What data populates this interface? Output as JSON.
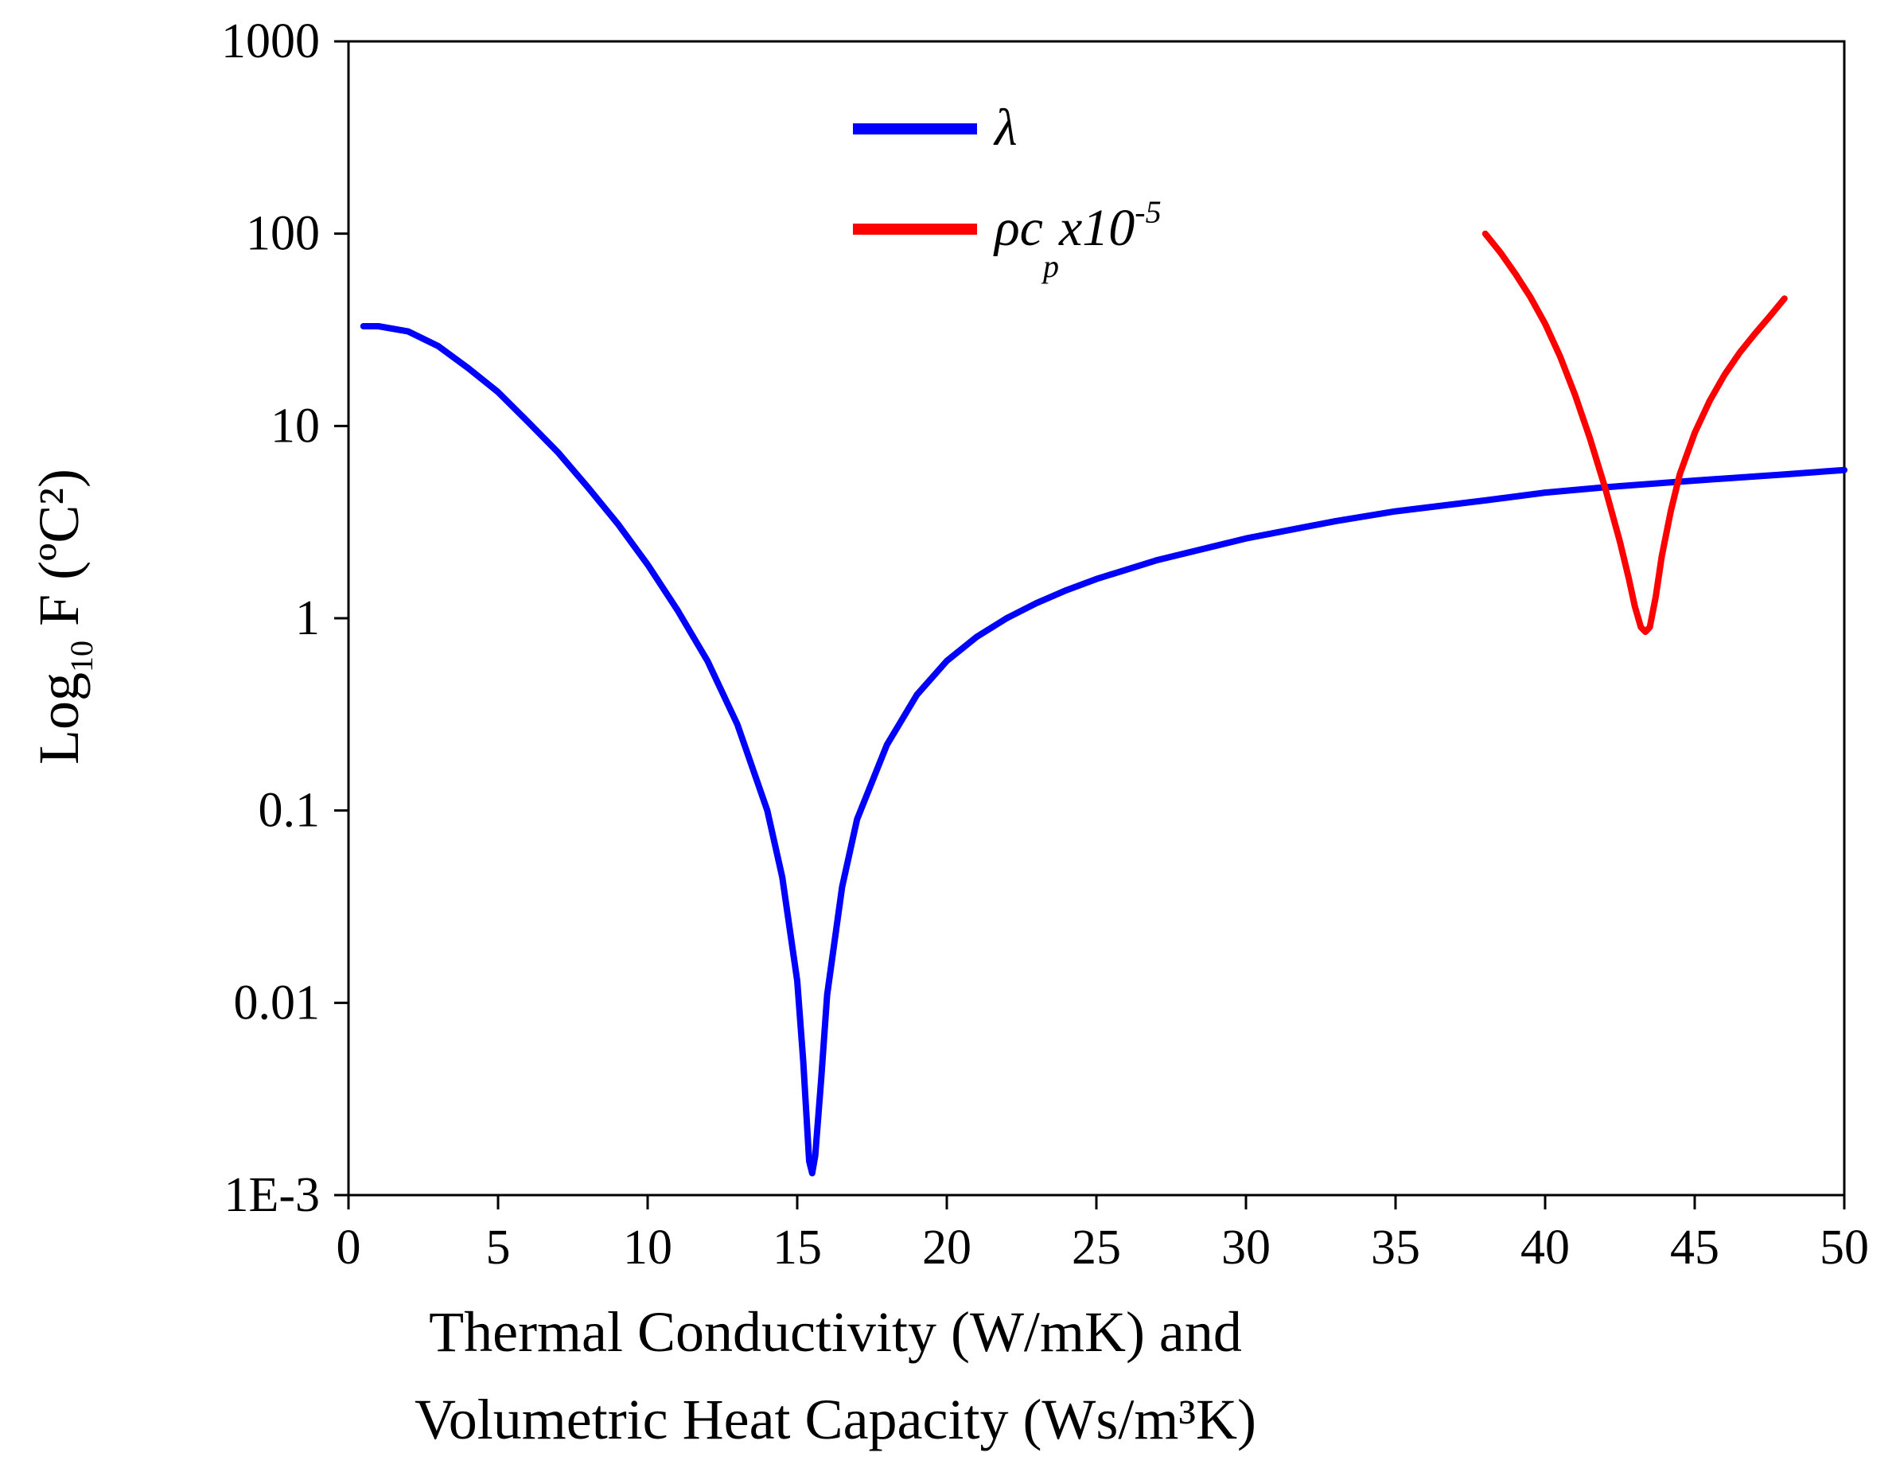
{
  "chart_data": {
    "type": "line",
    "title": "",
    "xlabel_line1": "Thermal Conductivity (W/mK) and",
    "xlabel_line2": "Volumetric Heat Capacity (Ws/m³K)",
    "ylabel_main": "Log",
    "ylabel_sub": "10",
    "ylabel_rest": " F (ºC²)",
    "xlim": [
      0,
      50
    ],
    "ylim": [
      0.001,
      1000
    ],
    "yscale": "log",
    "x_ticks": [
      0,
      5,
      10,
      15,
      20,
      25,
      30,
      35,
      40,
      45,
      50
    ],
    "x_tick_labels": [
      "0",
      "5",
      "10",
      "15",
      "20",
      "25",
      "30",
      "35",
      "40",
      "45",
      "50"
    ],
    "y_ticks": [
      0.001,
      0.01,
      0.1,
      1,
      10,
      100,
      1000
    ],
    "y_tick_labels": [
      "1E-3",
      "0.01",
      "0.1",
      "1",
      "10",
      "100",
      "1000"
    ],
    "legend_position": "top-center",
    "series": [
      {
        "name": "λ",
        "legend_label": "λ",
        "color": "#0000ff",
        "x": [
          0.5,
          1,
          2,
          3,
          4,
          5,
          6,
          7,
          8,
          9,
          10,
          11,
          12,
          13,
          14,
          14.5,
          15,
          15.2,
          15.4,
          15.5,
          15.6,
          15.8,
          16,
          16.5,
          17,
          18,
          19,
          20,
          21,
          22,
          23,
          24,
          25,
          27,
          30,
          33,
          35,
          38,
          40,
          42,
          45,
          48,
          50
        ],
        "y": [
          33,
          33,
          31,
          26,
          20,
          15,
          10.5,
          7.3,
          4.8,
          3.1,
          1.9,
          1.1,
          0.6,
          0.28,
          0.1,
          0.045,
          0.013,
          0.005,
          0.0015,
          0.0013,
          0.0016,
          0.004,
          0.011,
          0.04,
          0.09,
          0.22,
          0.4,
          0.6,
          0.8,
          1.0,
          1.2,
          1.4,
          1.6,
          2.0,
          2.6,
          3.2,
          3.6,
          4.1,
          4.5,
          4.8,
          5.2,
          5.6,
          5.9
        ]
      },
      {
        "name": "ρc_p x10^-5",
        "legend_label": "ρc",
        "legend_sub": "p",
        "legend_rest": "x10",
        "legend_sup": "-5",
        "color": "#ff0000",
        "x": [
          38,
          38.5,
          39,
          39.5,
          40,
          40.5,
          41,
          41.5,
          42,
          42.5,
          42.8,
          43,
          43.2,
          43.35,
          43.5,
          43.7,
          43.9,
          44.2,
          44.5,
          45,
          45.5,
          46,
          46.5,
          47,
          47.5,
          48
        ],
        "y": [
          100,
          80,
          62,
          47,
          34,
          23,
          14.5,
          8.6,
          4.8,
          2.5,
          1.6,
          1.15,
          0.9,
          0.85,
          0.9,
          1.3,
          2.1,
          3.6,
          5.6,
          9.2,
          13.5,
          18.5,
          24,
          30,
          37,
          46
        ]
      }
    ]
  }
}
